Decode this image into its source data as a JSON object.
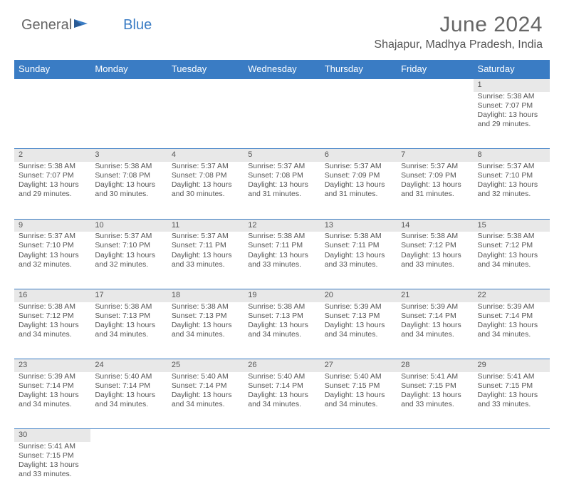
{
  "logo": {
    "text1": "General",
    "text2": "Blue"
  },
  "title": "June 2024",
  "subtitle": "Shajapur, Madhya Pradesh, India",
  "colors": {
    "header_bg": "#3a7cc4",
    "header_text": "#ffffff",
    "daynum_bg": "#e8e8e8",
    "text": "#555555",
    "divider": "#3a7cc4"
  },
  "day_headers": [
    "Sunday",
    "Monday",
    "Tuesday",
    "Wednesday",
    "Thursday",
    "Friday",
    "Saturday"
  ],
  "weeks": [
    {
      "nums": [
        "",
        "",
        "",
        "",
        "",
        "",
        "1"
      ],
      "cells": [
        null,
        null,
        null,
        null,
        null,
        null,
        {
          "sunrise": "5:38 AM",
          "sunset": "7:07 PM",
          "daylight": "13 hours and 29 minutes."
        }
      ]
    },
    {
      "nums": [
        "2",
        "3",
        "4",
        "5",
        "6",
        "7",
        "8"
      ],
      "cells": [
        {
          "sunrise": "5:38 AM",
          "sunset": "7:07 PM",
          "daylight": "13 hours and 29 minutes."
        },
        {
          "sunrise": "5:38 AM",
          "sunset": "7:08 PM",
          "daylight": "13 hours and 30 minutes."
        },
        {
          "sunrise": "5:37 AM",
          "sunset": "7:08 PM",
          "daylight": "13 hours and 30 minutes."
        },
        {
          "sunrise": "5:37 AM",
          "sunset": "7:08 PM",
          "daylight": "13 hours and 31 minutes."
        },
        {
          "sunrise": "5:37 AM",
          "sunset": "7:09 PM",
          "daylight": "13 hours and 31 minutes."
        },
        {
          "sunrise": "5:37 AM",
          "sunset": "7:09 PM",
          "daylight": "13 hours and 31 minutes."
        },
        {
          "sunrise": "5:37 AM",
          "sunset": "7:10 PM",
          "daylight": "13 hours and 32 minutes."
        }
      ]
    },
    {
      "nums": [
        "9",
        "10",
        "11",
        "12",
        "13",
        "14",
        "15"
      ],
      "cells": [
        {
          "sunrise": "5:37 AM",
          "sunset": "7:10 PM",
          "daylight": "13 hours and 32 minutes."
        },
        {
          "sunrise": "5:37 AM",
          "sunset": "7:10 PM",
          "daylight": "13 hours and 32 minutes."
        },
        {
          "sunrise": "5:37 AM",
          "sunset": "7:11 PM",
          "daylight": "13 hours and 33 minutes."
        },
        {
          "sunrise": "5:38 AM",
          "sunset": "7:11 PM",
          "daylight": "13 hours and 33 minutes."
        },
        {
          "sunrise": "5:38 AM",
          "sunset": "7:11 PM",
          "daylight": "13 hours and 33 minutes."
        },
        {
          "sunrise": "5:38 AM",
          "sunset": "7:12 PM",
          "daylight": "13 hours and 33 minutes."
        },
        {
          "sunrise": "5:38 AM",
          "sunset": "7:12 PM",
          "daylight": "13 hours and 34 minutes."
        }
      ]
    },
    {
      "nums": [
        "16",
        "17",
        "18",
        "19",
        "20",
        "21",
        "22"
      ],
      "cells": [
        {
          "sunrise": "5:38 AM",
          "sunset": "7:12 PM",
          "daylight": "13 hours and 34 minutes."
        },
        {
          "sunrise": "5:38 AM",
          "sunset": "7:13 PM",
          "daylight": "13 hours and 34 minutes."
        },
        {
          "sunrise": "5:38 AM",
          "sunset": "7:13 PM",
          "daylight": "13 hours and 34 minutes."
        },
        {
          "sunrise": "5:38 AM",
          "sunset": "7:13 PM",
          "daylight": "13 hours and 34 minutes."
        },
        {
          "sunrise": "5:39 AM",
          "sunset": "7:13 PM",
          "daylight": "13 hours and 34 minutes."
        },
        {
          "sunrise": "5:39 AM",
          "sunset": "7:14 PM",
          "daylight": "13 hours and 34 minutes."
        },
        {
          "sunrise": "5:39 AM",
          "sunset": "7:14 PM",
          "daylight": "13 hours and 34 minutes."
        }
      ]
    },
    {
      "nums": [
        "23",
        "24",
        "25",
        "26",
        "27",
        "28",
        "29"
      ],
      "cells": [
        {
          "sunrise": "5:39 AM",
          "sunset": "7:14 PM",
          "daylight": "13 hours and 34 minutes."
        },
        {
          "sunrise": "5:40 AM",
          "sunset": "7:14 PM",
          "daylight": "13 hours and 34 minutes."
        },
        {
          "sunrise": "5:40 AM",
          "sunset": "7:14 PM",
          "daylight": "13 hours and 34 minutes."
        },
        {
          "sunrise": "5:40 AM",
          "sunset": "7:14 PM",
          "daylight": "13 hours and 34 minutes."
        },
        {
          "sunrise": "5:40 AM",
          "sunset": "7:15 PM",
          "daylight": "13 hours and 34 minutes."
        },
        {
          "sunrise": "5:41 AM",
          "sunset": "7:15 PM",
          "daylight": "13 hours and 33 minutes."
        },
        {
          "sunrise": "5:41 AM",
          "sunset": "7:15 PM",
          "daylight": "13 hours and 33 minutes."
        }
      ]
    },
    {
      "nums": [
        "30",
        "",
        "",
        "",
        "",
        "",
        ""
      ],
      "cells": [
        {
          "sunrise": "5:41 AM",
          "sunset": "7:15 PM",
          "daylight": "13 hours and 33 minutes."
        },
        null,
        null,
        null,
        null,
        null,
        null
      ]
    }
  ],
  "labels": {
    "sunrise": "Sunrise: ",
    "sunset": "Sunset: ",
    "daylight": "Daylight: "
  }
}
